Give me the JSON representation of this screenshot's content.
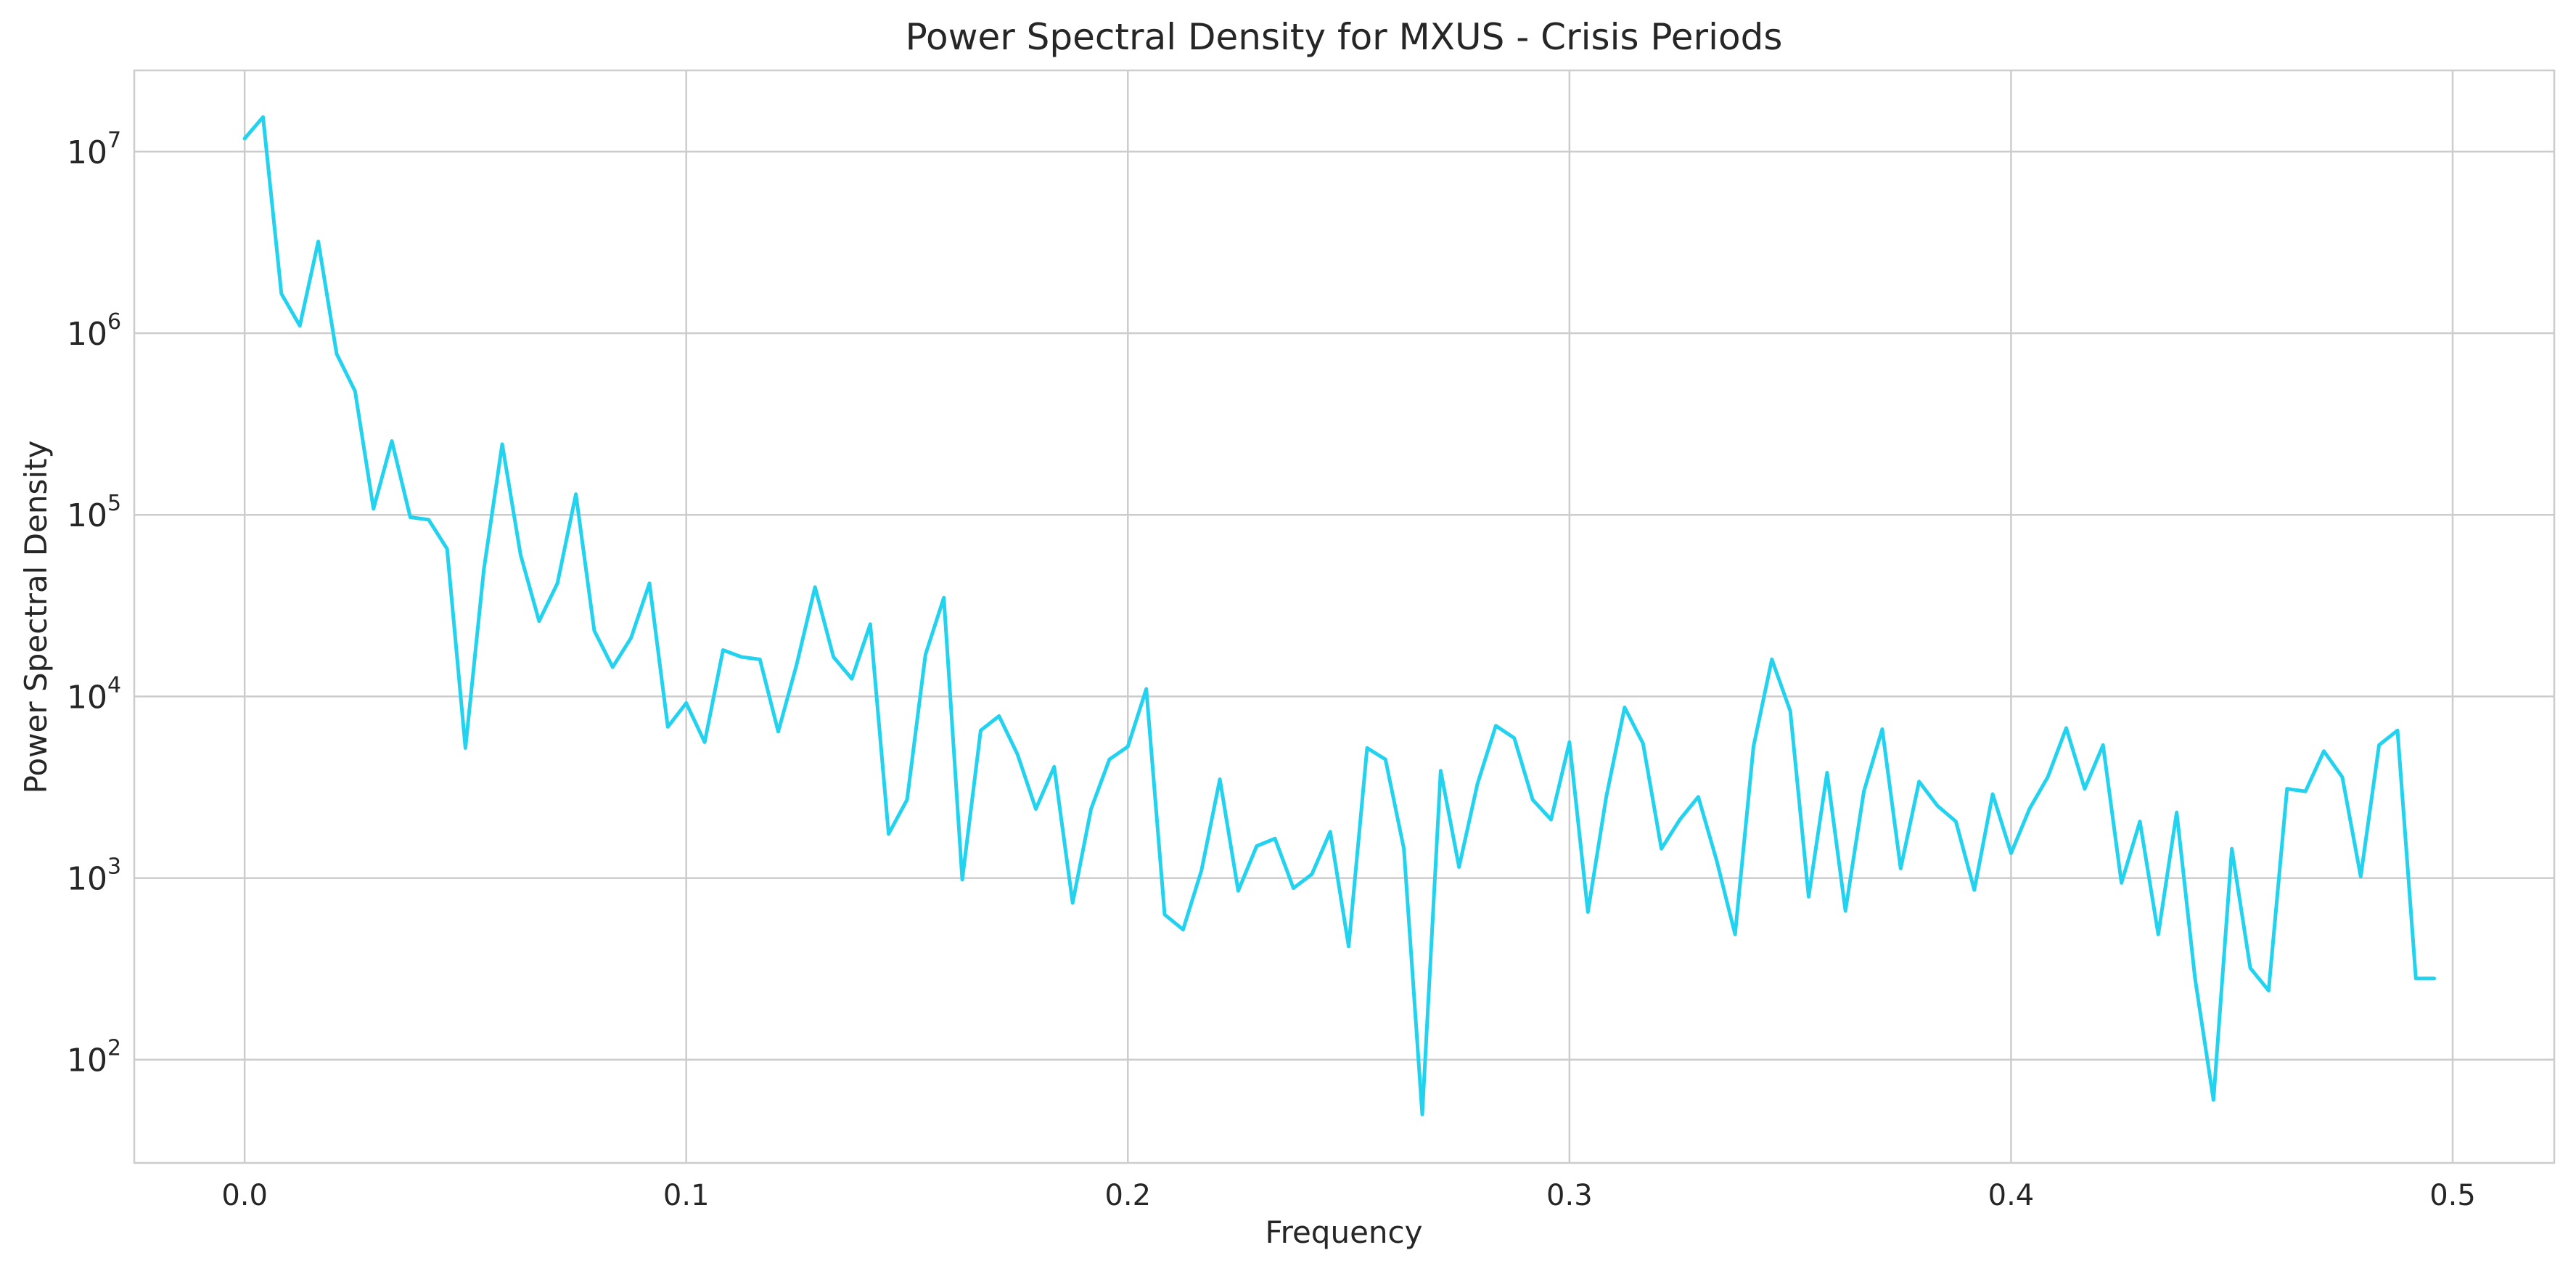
{
  "chart_data": {
    "type": "line",
    "title": "Power Spectral Density for MXUS - Crisis Periods",
    "xlabel": "Frequency",
    "ylabel": "Power Spectral Density",
    "xlim": [
      -0.025,
      0.523
    ],
    "ylim": [
      27,
      28000000
    ],
    "yscale": "log",
    "grid": true,
    "line_color": "#22d3f0",
    "xticks": [
      {
        "v": 0.0,
        "label": "0.0"
      },
      {
        "v": 0.1,
        "label": "0.1"
      },
      {
        "v": 0.2,
        "label": "0.2"
      },
      {
        "v": 0.3,
        "label": "0.3"
      },
      {
        "v": 0.4,
        "label": "0.4"
      },
      {
        "v": 0.5,
        "label": "0.5"
      }
    ],
    "yticks": [
      {
        "v": 100,
        "base": "10",
        "exp": "2"
      },
      {
        "v": 1000,
        "base": "10",
        "exp": "3"
      },
      {
        "v": 10000,
        "base": "10",
        "exp": "4"
      },
      {
        "v": 100000,
        "base": "10",
        "exp": "5"
      },
      {
        "v": 1000000,
        "base": "10",
        "exp": "6"
      },
      {
        "v": 10000000,
        "base": "10",
        "exp": "7"
      }
    ],
    "x": [
      0.0,
      0.00417,
      0.00833,
      0.0125,
      0.01667,
      0.02083,
      0.025,
      0.02917,
      0.03333,
      0.0375,
      0.04167,
      0.04583,
      0.05,
      0.05417,
      0.05833,
      0.0625,
      0.06667,
      0.07083,
      0.075,
      0.07917,
      0.08333,
      0.0875,
      0.09167,
      0.09583,
      0.1,
      0.10417,
      0.10833,
      0.1125,
      0.11667,
      0.12083,
      0.125,
      0.12917,
      0.13333,
      0.1375,
      0.14167,
      0.14583,
      0.15,
      0.15417,
      0.15833,
      0.1625,
      0.16667,
      0.17083,
      0.175,
      0.17917,
      0.18333,
      0.1875,
      0.19167,
      0.19583,
      0.2,
      0.20417,
      0.20833,
      0.2125,
      0.21667,
      0.22083,
      0.225,
      0.22917,
      0.23333,
      0.2375,
      0.24167,
      0.24583,
      0.25,
      0.25417,
      0.25833,
      0.2625,
      0.26667,
      0.27083,
      0.275,
      0.27917,
      0.28333,
      0.2875,
      0.29167,
      0.29583,
      0.3,
      0.30417,
      0.30833,
      0.3125,
      0.31667,
      0.32083,
      0.325,
      0.32917,
      0.33333,
      0.3375,
      0.34167,
      0.34583,
      0.35,
      0.35417,
      0.35833,
      0.3625,
      0.36667,
      0.37083,
      0.375,
      0.37917,
      0.38333,
      0.3875,
      0.39167,
      0.39583,
      0.4,
      0.40417,
      0.40833,
      0.4125,
      0.41667,
      0.42083,
      0.425,
      0.42917,
      0.43333,
      0.4375,
      0.44167,
      0.44583,
      0.45,
      0.45417,
      0.45833,
      0.4625,
      0.46667,
      0.47083,
      0.475,
      0.47917,
      0.48333,
      0.4875,
      0.49167,
      0.49583
    ],
    "y": [
      11800000,
      15500000,
      1650000,
      1100000,
      3200000,
      770000,
      480000,
      108000,
      255000,
      97000,
      94000,
      65000,
      5200,
      50000,
      245000,
      60000,
      26000,
      42000,
      130000,
      23000,
      14500,
      21000,
      42000,
      6800,
      9200,
      5600,
      18000,
      16500,
      16000,
      6400,
      15000,
      40000,
      16500,
      12500,
      25000,
      1750,
      2700,
      17000,
      35000,
      980,
      6500,
      7800,
      4800,
      2400,
      4100,
      730,
      2400,
      4500,
      5300,
      11000,
      630,
      520,
      1100,
      3500,
      850,
      1500,
      1650,
      880,
      1050,
      1800,
      420,
      5200,
      4500,
      1450,
      50,
      3900,
      1150,
      3300,
      6900,
      5900,
      2700,
      2100,
      5600,
      650,
      2800,
      8700,
      5500,
      1450,
      2100,
      2800,
      1250,
      490,
      5300,
      16000,
      8300,
      790,
      3800,
      660,
      3000,
      6600,
      1130,
      3400,
      2500,
      2050,
      860,
      2900,
      1370,
      2400,
      3600,
      6700,
      3100,
      5400,
      940,
      2050,
      490,
      2300,
      280,
      60,
      1450,
      320,
      240,
      3100,
      3000,
      5000,
      3600,
      1020,
      5400,
      6500,
      280,
      280
    ]
  }
}
